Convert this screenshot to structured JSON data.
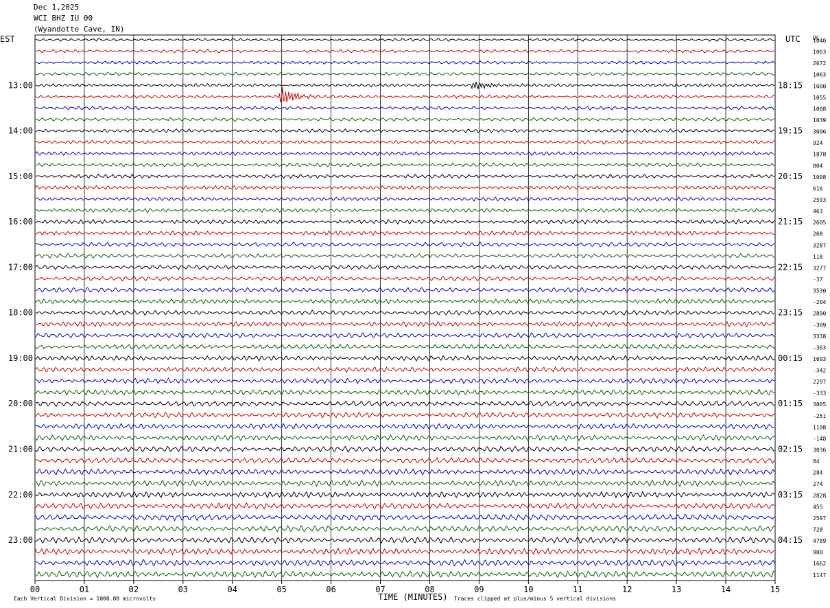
{
  "header": {
    "date": "Dec 1,2025",
    "station": "WCI BHZ IU 00",
    "location": "(Wyandotte Cave, IN)"
  },
  "chart_data": {
    "type": "line",
    "title": "",
    "xlabel": "TIME (MINUTES)",
    "left_axis_label": "EST",
    "right_axis_label": "UTC",
    "dc_label": "DC",
    "xlim": [
      0,
      15
    ],
    "x_ticks": [
      "00",
      "01",
      "02",
      "03",
      "04",
      "05",
      "06",
      "07",
      "08",
      "09",
      "10",
      "11",
      "12",
      "13",
      "14",
      "15"
    ],
    "rows_per_hour": 4,
    "trace_colors": [
      "#000000",
      "#cc0000",
      "#0000cc",
      "#006600"
    ],
    "left_hour_labels": [
      "13:00",
      "14:00",
      "15:00",
      "16:00",
      "17:00",
      "18:00",
      "19:00",
      "20:00",
      "21:00",
      "22:00",
      "23:00"
    ],
    "right_hour_labels": [
      "18:15",
      "19:15",
      "20:15",
      "21:15",
      "22:15",
      "23:15",
      "00:15",
      "01:15",
      "02:15",
      "03:15",
      "04:15"
    ],
    "dc_offsets": [
      "1040",
      "1063",
      "2672",
      "1063",
      "1600",
      "1055",
      "1008",
      "1039",
      "3096",
      "924",
      "1878",
      "804",
      "1008",
      "616",
      "2593",
      "463",
      "2605",
      "268",
      "3287",
      "118",
      "3277",
      "-37",
      "3530",
      "-204",
      "2890",
      "-309",
      "3338",
      "-363",
      "1693",
      "-342",
      "2297",
      "-333",
      "3005",
      "-261",
      "1198",
      "-148",
      "3036",
      "84",
      "284",
      "274",
      "2828",
      "455",
      "2597",
      "728",
      "4789",
      "900",
      "1662",
      "1147"
    ],
    "notable_events": [
      {
        "row": 4,
        "minute": 8.9,
        "amplitude": "moderate"
      },
      {
        "row": 5,
        "minute": 5.0,
        "amplitude": "large"
      }
    ],
    "footer_left": "Each Vertical Division = 1000.00 microvolts",
    "footer_right": "Traces clipped at plus/minus 5 vertical divisions"
  }
}
